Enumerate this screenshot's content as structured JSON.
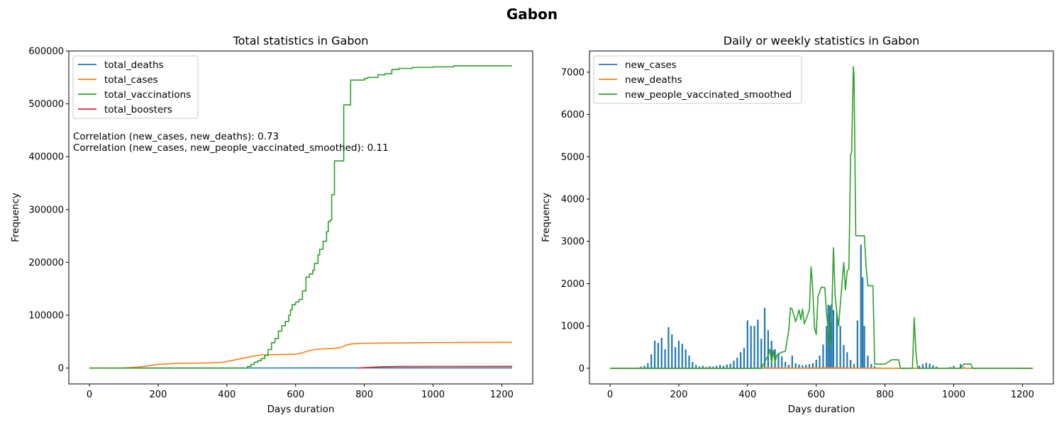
{
  "figure": {
    "suptitle": "Gabon"
  },
  "chart_data": [
    {
      "type": "line",
      "title": "Total statistics in Gabon",
      "xlabel": "Days duration",
      "ylabel": "Frequency",
      "xlim": [
        -60,
        1290
      ],
      "ylim": [
        -30000,
        600000
      ],
      "xticks": [
        0,
        200,
        400,
        600,
        800,
        1000,
        1200
      ],
      "yticks": [
        0,
        100000,
        200000,
        300000,
        400000,
        500000,
        600000
      ],
      "grid": false,
      "legend": "upper-left",
      "annotations": [
        "Correlation (new_cases, new_deaths): 0.73",
        "Correlation (new_cases, new_people_vaccinated_smoothed): 0.11"
      ],
      "series": [
        {
          "name": "total_deaths",
          "color": "#1f77b4",
          "step": false,
          "points": [
            [
              0,
              0
            ],
            [
              100,
              5
            ],
            [
              150,
              40
            ],
            [
              250,
              54
            ],
            [
              400,
              90
            ],
            [
              500,
              160
            ],
            [
              620,
              180
            ],
            [
              800,
              300
            ],
            [
              1000,
              306
            ],
            [
              1230,
              306
            ]
          ]
        },
        {
          "name": "total_cases",
          "color": "#ff7f0e",
          "step": false,
          "points": [
            [
              0,
              0
            ],
            [
              100,
              300
            ],
            [
              150,
              2500
            ],
            [
              200,
              7000
            ],
            [
              250,
              8800
            ],
            [
              300,
              9200
            ],
            [
              350,
              9800
            ],
            [
              390,
              11000
            ],
            [
              420,
              15000
            ],
            [
              450,
              19000
            ],
            [
              480,
              23000
            ],
            [
              500,
              24800
            ],
            [
              550,
              25500
            ],
            [
              600,
              26000
            ],
            [
              620,
              29000
            ],
            [
              640,
              33000
            ],
            [
              660,
              35500
            ],
            [
              700,
              37000
            ],
            [
              730,
              38500
            ],
            [
              745,
              43000
            ],
            [
              760,
              45500
            ],
            [
              800,
              47000
            ],
            [
              900,
              47500
            ],
            [
              1000,
              48200
            ],
            [
              1230,
              48500
            ]
          ]
        },
        {
          "name": "total_vaccinations",
          "color": "#2ca02c",
          "step": true,
          "points": [
            [
              0,
              0
            ],
            [
              450,
              0
            ],
            [
              460,
              3000
            ],
            [
              470,
              7000
            ],
            [
              480,
              11000
            ],
            [
              490,
              14000
            ],
            [
              500,
              18000
            ],
            [
              510,
              24000
            ],
            [
              520,
              35000
            ],
            [
              530,
              48000
            ],
            [
              540,
              56000
            ],
            [
              550,
              70000
            ],
            [
              560,
              80000
            ],
            [
              570,
              88000
            ],
            [
              580,
              100000
            ],
            [
              585,
              110000
            ],
            [
              590,
              120000
            ],
            [
              600,
              125000
            ],
            [
              610,
              130000
            ],
            [
              620,
              146000
            ],
            [
              630,
              172000
            ],
            [
              640,
              178000
            ],
            [
              650,
              185000
            ],
            [
              655,
              198000
            ],
            [
              665,
              214000
            ],
            [
              670,
              225000
            ],
            [
              680,
              240000
            ],
            [
              690,
              258000
            ],
            [
              695,
              277000
            ],
            [
              700,
              280000
            ],
            [
              705,
              328000
            ],
            [
              713,
              392000
            ],
            [
              735,
              392000
            ],
            [
              740,
              498000
            ],
            [
              760,
              545000
            ],
            [
              800,
              548000
            ],
            [
              810,
              550000
            ],
            [
              840,
              555000
            ],
            [
              860,
              557000
            ],
            [
              880,
              565000
            ],
            [
              900,
              567000
            ],
            [
              940,
              569000
            ],
            [
              1000,
              570000
            ],
            [
              1060,
              572000
            ],
            [
              1230,
              572000
            ]
          ]
        },
        {
          "name": "total_boosters",
          "color": "#d62728",
          "step": false,
          "points": [
            [
              780,
              0
            ],
            [
              800,
              800
            ],
            [
              850,
              2500
            ],
            [
              900,
              2900
            ],
            [
              1000,
              3000
            ],
            [
              1230,
              3100
            ]
          ]
        }
      ]
    },
    {
      "type": "line",
      "title": "Daily or weekly statistics in Gabon",
      "xlabel": "Days duration",
      "ylabel": "Frequency",
      "xlim": [
        -60,
        1290
      ],
      "ylim": [
        -370,
        7500
      ],
      "xticks": [
        0,
        200,
        400,
        600,
        800,
        1000,
        1200
      ],
      "yticks": [
        0,
        1000,
        2000,
        3000,
        4000,
        5000,
        6000,
        7000
      ],
      "grid": false,
      "legend": "upper-left",
      "series": [
        {
          "name": "new_cases",
          "color": "#1f77b4",
          "style": "spikes",
          "points": [
            [
              70,
              10
            ],
            [
              80,
              20
            ],
            [
              90,
              40
            ],
            [
              100,
              60
            ],
            [
              110,
              120
            ],
            [
              120,
              330
            ],
            [
              130,
              650
            ],
            [
              140,
              600
            ],
            [
              150,
              720
            ],
            [
              160,
              450
            ],
            [
              170,
              970
            ],
            [
              180,
              800
            ],
            [
              190,
              500
            ],
            [
              200,
              650
            ],
            [
              210,
              580
            ],
            [
              220,
              450
            ],
            [
              230,
              300
            ],
            [
              240,
              150
            ],
            [
              250,
              80
            ],
            [
              260,
              40
            ],
            [
              270,
              60
            ],
            [
              280,
              30
            ],
            [
              290,
              50
            ],
            [
              300,
              40
            ],
            [
              310,
              60
            ],
            [
              320,
              80
            ],
            [
              330,
              60
            ],
            [
              340,
              90
            ],
            [
              350,
              110
            ],
            [
              360,
              180
            ],
            [
              370,
              250
            ],
            [
              380,
              380
            ],
            [
              390,
              480
            ],
            [
              400,
              1130
            ],
            [
              410,
              1000
            ],
            [
              420,
              1000
            ],
            [
              430,
              1150
            ],
            [
              440,
              700
            ],
            [
              450,
              1430
            ],
            [
              460,
              900
            ],
            [
              470,
              650
            ],
            [
              480,
              450
            ],
            [
              490,
              350
            ],
            [
              500,
              280
            ],
            [
              510,
              150
            ],
            [
              520,
              80
            ],
            [
              530,
              300
            ],
            [
              540,
              120
            ],
            [
              550,
              90
            ],
            [
              560,
              70
            ],
            [
              570,
              80
            ],
            [
              580,
              100
            ],
            [
              590,
              120
            ],
            [
              600,
              200
            ],
            [
              610,
              300
            ],
            [
              620,
              560
            ],
            [
              630,
              1000
            ],
            [
              635,
              1500
            ],
            [
              640,
              1480
            ],
            [
              645,
              1520
            ],
            [
              650,
              1380
            ],
            [
              660,
              1300
            ],
            [
              670,
              1000
            ],
            [
              680,
              550
            ],
            [
              690,
              380
            ],
            [
              700,
              200
            ],
            [
              710,
              100
            ],
            [
              720,
              1130
            ],
            [
              730,
              2920
            ],
            [
              735,
              2150
            ],
            [
              740,
              1000
            ],
            [
              750,
              300
            ],
            [
              760,
              100
            ],
            [
              770,
              50
            ],
            [
              780,
              20
            ],
            [
              900,
              60
            ],
            [
              910,
              100
            ],
            [
              920,
              130
            ],
            [
              930,
              110
            ],
            [
              940,
              70
            ],
            [
              950,
              40
            ],
            [
              990,
              30
            ],
            [
              1000,
              60
            ],
            [
              1020,
              100
            ],
            [
              1030,
              30
            ]
          ]
        },
        {
          "name": "new_deaths",
          "color": "#ff7f0e",
          "style": "line",
          "points": [
            [
              0,
              0
            ],
            [
              400,
              0
            ],
            [
              450,
              8
            ],
            [
              500,
              6
            ],
            [
              550,
              4
            ],
            [
              600,
              8
            ],
            [
              650,
              12
            ],
            [
              700,
              6
            ],
            [
              750,
              3
            ],
            [
              800,
              2
            ],
            [
              1230,
              0
            ]
          ]
        },
        {
          "name": "new_people_vaccinated_smoothed",
          "color": "#2ca02c",
          "style": "line",
          "points": [
            [
              0,
              0
            ],
            [
              440,
              0
            ],
            [
              460,
              300
            ],
            [
              465,
              450
            ],
            [
              470,
              130
            ],
            [
              475,
              430
            ],
            [
              480,
              140
            ],
            [
              485,
              300
            ],
            [
              490,
              350
            ],
            [
              500,
              380
            ],
            [
              510,
              400
            ],
            [
              520,
              900
            ],
            [
              525,
              1430
            ],
            [
              530,
              1400
            ],
            [
              540,
              1100
            ],
            [
              550,
              1380
            ],
            [
              555,
              1150
            ],
            [
              560,
              1400
            ],
            [
              565,
              1050
            ],
            [
              570,
              1150
            ],
            [
              580,
              1380
            ],
            [
              585,
              2400
            ],
            [
              590,
              1850
            ],
            [
              595,
              950
            ],
            [
              600,
              800
            ],
            [
              605,
              1700
            ],
            [
              615,
              1920
            ],
            [
              625,
              1900
            ],
            [
              630,
              1300
            ],
            [
              640,
              500
            ],
            [
              645,
              1200
            ],
            [
              650,
              2850
            ],
            [
              655,
              1700
            ],
            [
              660,
              1300
            ],
            [
              665,
              1000
            ],
            [
              670,
              1500
            ],
            [
              680,
              2500
            ],
            [
              685,
              1850
            ],
            [
              690,
              2300
            ],
            [
              695,
              2350
            ],
            [
              700,
              5050
            ],
            [
              703,
              5100
            ],
            [
              708,
              7130
            ],
            [
              710,
              6900
            ],
            [
              715,
              3130
            ],
            [
              740,
              3130
            ],
            [
              745,
              2400
            ],
            [
              750,
              1950
            ],
            [
              765,
              1950
            ],
            [
              770,
              100
            ],
            [
              800,
              100
            ],
            [
              820,
              200
            ],
            [
              840,
              200
            ],
            [
              845,
              0
            ],
            [
              880,
              0
            ],
            [
              885,
              1200
            ],
            [
              890,
              400
            ],
            [
              895,
              0
            ],
            [
              1020,
              0
            ],
            [
              1030,
              100
            ],
            [
              1050,
              100
            ],
            [
              1055,
              0
            ],
            [
              1230,
              0
            ]
          ]
        }
      ]
    }
  ]
}
